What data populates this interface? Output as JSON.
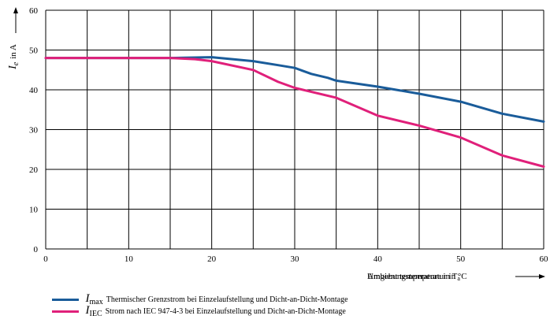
{
  "chart_data": {
    "type": "line",
    "xlabel": "Umgebungstemperatur in °C",
    "xlabel_overprint": "Ambient temperature in T",
    "xlabel_overprint_sub": "a",
    "ylabel_symbol": "I",
    "ylabel_sub": "e",
    "ylabel_unit": "in A",
    "xlim": [
      0,
      60
    ],
    "ylim": [
      0,
      60
    ],
    "x_ticks": [
      "0",
      "10",
      "20",
      "30",
      "40",
      "50",
      "60"
    ],
    "y_ticks": [
      "0",
      "10",
      "20",
      "30",
      "40",
      "50",
      "60"
    ],
    "grid": true,
    "series": [
      {
        "name": "Thermischer Grenzstrom bei Einzelaufstellung und Dicht-an-Dicht-Montage",
        "symbol": "I",
        "sub": "max",
        "color": "#1a5c9a",
        "x": [
          0,
          5,
          10,
          15,
          20,
          25,
          28,
          30,
          32,
          34,
          35,
          40,
          45,
          50,
          55,
          60
        ],
        "y": [
          48,
          48,
          48,
          48,
          48.2,
          47.2,
          46.2,
          45.5,
          44,
          43,
          42.3,
          40.8,
          39,
          37,
          34,
          32
        ]
      },
      {
        "name": "Strom nach IEC 947-4-3 bei Einzelaufstellung und Dicht-an-Dicht-Montage",
        "symbol": "I",
        "sub": "IEC",
        "color": "#e0207a",
        "x": [
          0,
          5,
          10,
          15,
          18,
          20,
          25,
          28,
          30,
          35,
          40,
          45,
          50,
          55,
          60
        ],
        "y": [
          48,
          48,
          48,
          48,
          47.7,
          47.2,
          45,
          42,
          40.5,
          38,
          33.5,
          31,
          28,
          23.5,
          20.7
        ]
      }
    ]
  }
}
